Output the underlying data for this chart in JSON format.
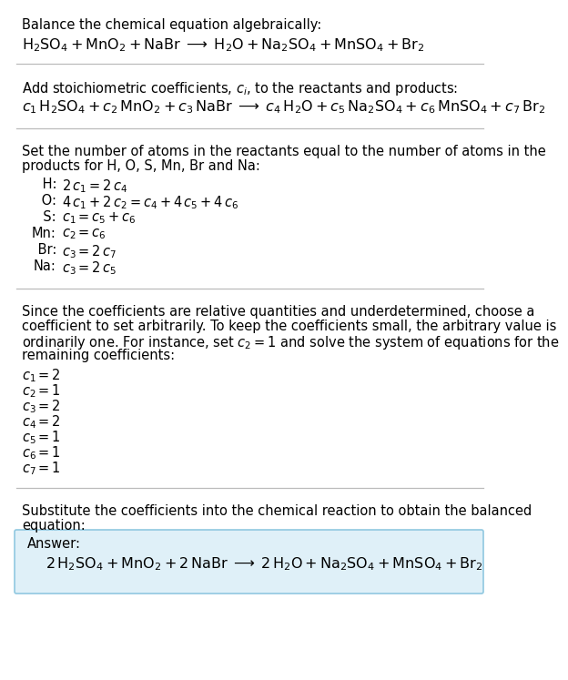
{
  "bg_color": "#ffffff",
  "text_color": "#000000",
  "fs_title": 10.5,
  "fs_body": 10.5,
  "fs_eq": 11.5,
  "lm": 0.03,
  "divider_color": "#bbbbbb",
  "answer_box_color": "#dff0f8",
  "answer_box_edge": "#90c8e0",
  "section1_title": "Balance the chemical equation algebraically:",
  "section2_title": "Add stoichiometric coefficients, $c_i$, to the reactants and products:",
  "section3_title_l1": "Set the number of atoms in the reactants equal to the number of atoms in the",
  "section3_title_l2": "products for H, O, S, Mn, Br and Na:",
  "equations": [
    [
      " H:",
      "$2\\,c_1 = 2\\,c_4$"
    ],
    [
      " O:",
      "$4\\,c_1 + 2\\,c_2 = c_4 + 4\\,c_5 + 4\\,c_6$"
    ],
    [
      "  S:",
      "$c_1 = c_5 + c_6$"
    ],
    [
      "Mn:",
      "$c_2 = c_6$"
    ],
    [
      " Br:",
      "$c_3 = 2\\,c_7$"
    ],
    [
      "Na:",
      "$c_3 = 2\\,c_5$"
    ]
  ],
  "section4_l1": "Since the coefficients are relative quantities and underdetermined, choose a",
  "section4_l2": "coefficient to set arbitrarily. To keep the coefficients small, the arbitrary value is",
  "section4_l3": "ordinarily one. For instance, set $c_2 = 1$ and solve the system of equations for the",
  "section4_l4": "remaining coefficients:",
  "coefficients": [
    "$c_1 = 2$",
    "$c_2 = 1$",
    "$c_3 = 2$",
    "$c_4 = 2$",
    "$c_5 = 1$",
    "$c_6 = 1$",
    "$c_7 = 1$"
  ],
  "section5_l1": "Substitute the coefficients into the chemical reaction to obtain the balanced",
  "section5_l2": "equation:",
  "answer_label": "Answer:",
  "answer_box_edge_color": "#90c8e0"
}
